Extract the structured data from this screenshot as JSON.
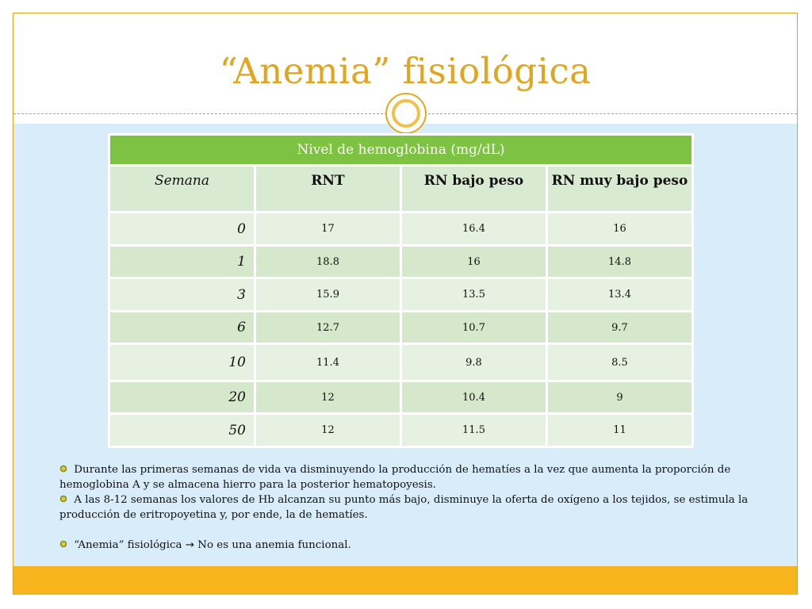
{
  "slide": {
    "title": "“Anemia” fisiológica"
  },
  "colors": {
    "accent_gold": "#e3a51e",
    "table_header_green": "#7dc242",
    "table_row_light": "#e6f1e1",
    "table_row_dark": "#d6e8cc",
    "content_background": "#d8ecfa",
    "footer_bar": "#f7b41d"
  },
  "table": {
    "title": "Nivel de hemoglobina (mg/dL)",
    "columns": [
      "Semana",
      "RNT",
      "RN bajo peso",
      "RN muy bajo peso"
    ],
    "rows": [
      [
        "0",
        "17",
        "16.4",
        "16"
      ],
      [
        "1",
        "18.8",
        "16",
        "14.8"
      ],
      [
        "3",
        "15.9",
        "13.5",
        "13.4"
      ],
      [
        "6",
        "12.7",
        "10.7",
        "9.7"
      ],
      [
        "10",
        "11.4",
        "9.8",
        "8.5"
      ],
      [
        "20",
        "12",
        "10.4",
        "9"
      ],
      [
        "50",
        "12",
        "11.5",
        "11"
      ]
    ]
  },
  "notes": {
    "bullet_icon": "flower-bullet-icon",
    "items": [
      "Durante las primeras semanas de vida va disminuyendo la producción de hematíes a la vez que aumenta la proporción de hemoglobina A y se almacena hierro para la posterior hematopoyesis.",
      "A las 8-12 semanas los valores de Hb alcanzan su punto más bajo, disminuye la oferta de oxígeno a los tejidos, se estimula la producción de eritropoyetina y, por ende, la de hematíes."
    ],
    "conclusion": {
      "left": "“Anemia” fisiológica",
      "arrow": "→",
      "right": "No es una anemia funcional."
    }
  }
}
